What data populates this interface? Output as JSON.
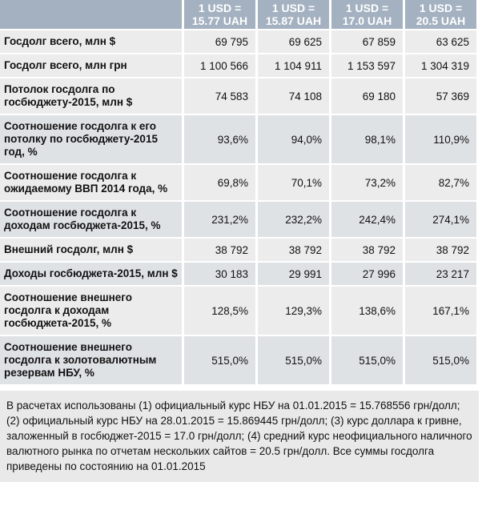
{
  "chart_data": {
    "type": "table",
    "title": "",
    "columns": [
      {
        "label": "1 USD = 15.77 UAH",
        "line1": "1 USD =",
        "line2": "15.77 UAH"
      },
      {
        "label": "1 USD = 15.87 UAH",
        "line1": "1 USD =",
        "line2": "15.87 UAH"
      },
      {
        "label": "1 USD = 17.0 UAH",
        "line1": "1 USD =",
        "line2": "17.0 UAH"
      },
      {
        "label": "1 USD = 20.5 UAH",
        "line1": "1 USD =",
        "line2": "20.5 UAH"
      }
    ],
    "rows": [
      {
        "label": "Госдолг всего, млн $",
        "values": [
          "69 795",
          "69 625",
          "67 859",
          "63 625"
        ]
      },
      {
        "label": "Госдолг всего, млн грн",
        "values": [
          "1 100 566",
          "1 104 911",
          "1 153 597",
          "1 304 319"
        ]
      },
      {
        "label": "Потолок госдолга по госбюджету-2015, млн $",
        "values": [
          "74 583",
          "74 108",
          "69 180",
          "57 369"
        ]
      },
      {
        "label": "Соотношение госдолга к его потолку по госбюджету-2015 год, %",
        "values": [
          "93,6%",
          "94,0%",
          "98,1%",
          "110,9%"
        ]
      },
      {
        "label": "Соотношение госдолга к ожидаемому ВВП 2014 года, %",
        "values": [
          "69,8%",
          "70,1%",
          "73,2%",
          "82,7%"
        ]
      },
      {
        "label": "Соотношение госдолга к доходам госбюджета-2015, %",
        "values": [
          "231,2%",
          "232,2%",
          "242,4%",
          "274,1%"
        ]
      },
      {
        "label": "Внешний госдолг, млн $",
        "values": [
          "38 792",
          "38 792",
          "38 792",
          "38 792"
        ]
      },
      {
        "label": "Доходы госбюджета-2015, млн $",
        "values": [
          "30 183",
          "29 991",
          "27 996",
          "23 217"
        ]
      },
      {
        "label": "Соотношение внешнего госдолга к доходам госбюджета-2015, %",
        "values": [
          "128,5%",
          "129,3%",
          "138,6%",
          "167,1%"
        ]
      },
      {
        "label": "Соотношение внешнего госдолга к золотовалютным резервам НБУ, %",
        "values": [
          "515,0%",
          "515,0%",
          "515,0%",
          "515,0%"
        ]
      }
    ],
    "footnote": "В расчетах использованы (1) официальный курс НБУ на 01.01.2015 = 15.768556 грн/долл; (2) официальный курс НБУ на 28.01.2015 = 15.869445 грн/долл; (3) курс доллара к гривне, заложенный в госбюджет-2015 = 17.0 грн/долл; (4) средний курс неофициального наличного валютного рынка по отчетам нескольких сайтов = 20.5 грн/долл. Все суммы госдолга приведены по состоянию на 01.01.2015"
  },
  "colors": {
    "header_bg": "#a4b1c1",
    "row_light": "#ececec",
    "row_dark": "#dfe2e5",
    "footnote_bg": "#e9e9e9"
  }
}
